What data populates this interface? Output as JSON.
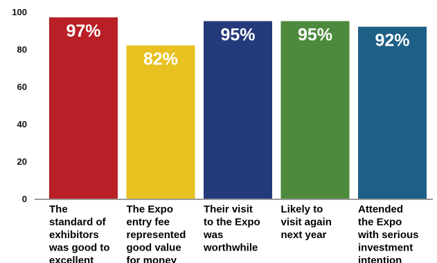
{
  "chart_data": {
    "type": "bar",
    "title": "",
    "xlabel": "",
    "ylabel": "",
    "ylim": [
      0,
      100
    ],
    "yticks": [
      0,
      20,
      40,
      60,
      80,
      100
    ],
    "grid": false,
    "categories": [
      [
        "The",
        "standard of",
        "exhibitors",
        "was good to",
        "excellent"
      ],
      [
        "The Expo",
        "entry fee",
        "represented",
        "good value",
        "for money"
      ],
      [
        "Their visit",
        "to the Expo",
        "was",
        "worthwhile"
      ],
      [
        "Likely to",
        "visit again",
        "next year"
      ],
      [
        "Attended",
        "the Expo",
        "with serious",
        "investment",
        "intention"
      ]
    ],
    "values": [
      97,
      82,
      95,
      95,
      92
    ],
    "data_labels": [
      "97%",
      "82%",
      "95%",
      "95%",
      "92%"
    ],
    "colors": [
      "#b81f26",
      "#e8c121",
      "#243a7a",
      "#4e8a3e",
      "#1e5f86"
    ],
    "axis_color": "#9a9a9a"
  }
}
